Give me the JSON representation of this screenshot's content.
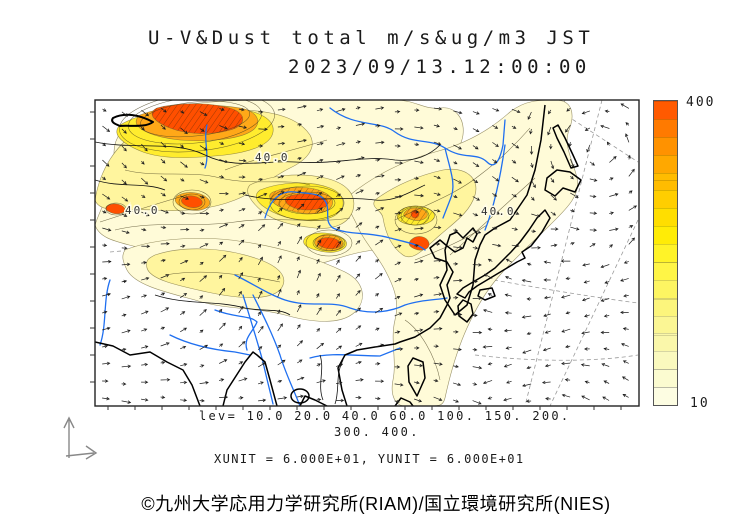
{
  "title": {
    "line1": "U-V&Dust total m/s&ug/m3 JST",
    "line2": "2023/09/13.12:00:00"
  },
  "map": {
    "contour_labels": [
      "40.0",
      "40.0",
      "40.0"
    ]
  },
  "colorbar": {
    "max_label": "400",
    "min_label": "10",
    "colors": [
      "#FDFDE2",
      "#FBFBD0",
      "#FAF9BE",
      "#FAF7AA",
      "#FBF694",
      "#FCF57C",
      "#FDF562",
      "#FFF546",
      "#FFF328",
      "#FFEC06",
      "#FFDE00",
      "#FFCE00",
      "#FFBC00",
      "#FFA800",
      "#FF9200",
      "#FF7A00",
      "#FF5A00"
    ]
  },
  "legend": {
    "lev_line1": "lev= 10.0 20.0 40.0 60.0 100. 150. 200.",
    "lev_line2": "300. 400.",
    "unit_line": "XUNIT = 6.000E+01, YUNIT = 6.000E+01"
  },
  "footer": {
    "credit": "©九州大学応用力学研究所(RIAM)/国立環境研究所(NIES)"
  }
}
